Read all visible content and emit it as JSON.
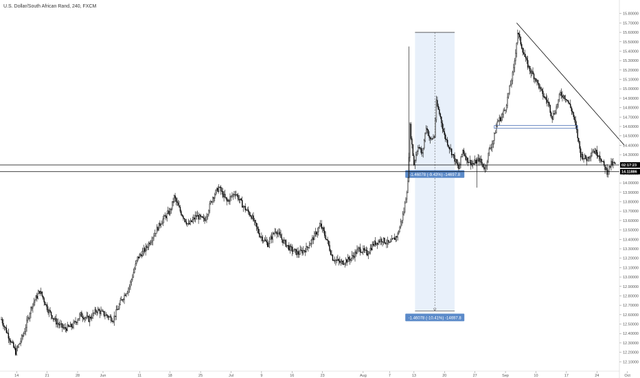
{
  "colors": {
    "background": "#ffffff",
    "candle": "#000000",
    "measure_fill": "#e8f0fa",
    "measure_label": "#5b8ac9",
    "price_tag": "#000000",
    "hline": "#000000",
    "support_line": "#4a6fb5"
  },
  "chart_data": {
    "type": "candlestick",
    "title": "U.S. Dollar/South African Rand, 240, FXCM",
    "ylim": [
      12.0,
      15.9
    ],
    "y_ticks": [
      "12.10000",
      "12.20000",
      "12.30000",
      "12.40000",
      "12.50000",
      "12.60000",
      "12.70000",
      "12.80000",
      "12.90000",
      "13.00000",
      "13.10000",
      "13.20000",
      "13.30000",
      "13.40000",
      "13.50000",
      "13.60000",
      "13.70000",
      "13.80000",
      "13.90000",
      "14.00000",
      "14.10000",
      "14.20000",
      "14.30000",
      "14.40000",
      "14.50000",
      "14.60000",
      "14.70000",
      "14.80000",
      "14.90000",
      "15.00000",
      "15.10000",
      "15.20000",
      "15.30000",
      "15.40000",
      "15.50000",
      "15.60000",
      "15.70000",
      "15.80000"
    ],
    "x_labels": [
      {
        "label": "14",
        "index": 15
      },
      {
        "label": "21",
        "index": 45
      },
      {
        "label": "28",
        "index": 75
      },
      {
        "label": "Jun",
        "index": 100
      },
      {
        "label": "11",
        "index": 136
      },
      {
        "label": "18",
        "index": 166
      },
      {
        "label": "25",
        "index": 196
      },
      {
        "label": "Jul",
        "index": 226
      },
      {
        "label": "9",
        "index": 256
      },
      {
        "label": "16",
        "index": 286
      },
      {
        "label": "23",
        "index": 316
      },
      {
        "label": "Aug",
        "index": 356
      },
      {
        "label": "7",
        "index": 382
      },
      {
        "label": "13",
        "index": 406
      },
      {
        "label": "20",
        "index": 436
      },
      {
        "label": "27",
        "index": 466
      },
      {
        "label": "Sep",
        "index": 496
      },
      {
        "label": "10",
        "index": 526
      },
      {
        "label": "17",
        "index": 556
      },
      {
        "label": "24",
        "index": 586
      },
      {
        "label": "Oct",
        "index": 616
      }
    ],
    "anchors": [
      [
        0,
        12.55
      ],
      [
        8,
        12.35
      ],
      [
        14,
        12.2
      ],
      [
        22,
        12.4
      ],
      [
        30,
        12.7
      ],
      [
        38,
        12.85
      ],
      [
        46,
        12.65
      ],
      [
        54,
        12.52
      ],
      [
        62,
        12.45
      ],
      [
        70,
        12.48
      ],
      [
        78,
        12.6
      ],
      [
        86,
        12.55
      ],
      [
        94,
        12.65
      ],
      [
        102,
        12.6
      ],
      [
        110,
        12.55
      ],
      [
        118,
        12.75
      ],
      [
        126,
        12.9
      ],
      [
        134,
        13.2
      ],
      [
        142,
        13.3
      ],
      [
        150,
        13.45
      ],
      [
        158,
        13.6
      ],
      [
        166,
        13.7
      ],
      [
        170,
        13.85
      ],
      [
        176,
        13.7
      ],
      [
        184,
        13.55
      ],
      [
        192,
        13.65
      ],
      [
        200,
        13.6
      ],
      [
        208,
        13.85
      ],
      [
        214,
        13.95
      ],
      [
        222,
        13.8
      ],
      [
        230,
        13.9
      ],
      [
        238,
        13.75
      ],
      [
        246,
        13.65
      ],
      [
        254,
        13.45
      ],
      [
        262,
        13.35
      ],
      [
        270,
        13.5
      ],
      [
        276,
        13.4
      ],
      [
        284,
        13.3
      ],
      [
        292,
        13.25
      ],
      [
        300,
        13.3
      ],
      [
        306,
        13.4
      ],
      [
        314,
        13.55
      ],
      [
        320,
        13.4
      ],
      [
        326,
        13.2
      ],
      [
        334,
        13.15
      ],
      [
        344,
        13.2
      ],
      [
        352,
        13.3
      ],
      [
        360,
        13.25
      ],
      [
        366,
        13.35
      ],
      [
        374,
        13.4
      ],
      [
        382,
        13.35
      ],
      [
        390,
        13.45
      ],
      [
        396,
        13.7
      ],
      [
        400,
        14.0
      ],
      [
        402,
        14.6
      ],
      [
        406,
        14.2
      ],
      [
        410,
        14.4
      ],
      [
        414,
        14.3
      ],
      [
        418,
        14.6
      ],
      [
        422,
        14.45
      ],
      [
        426,
        14.5
      ],
      [
        428,
        14.85
      ],
      [
        432,
        14.7
      ],
      [
        436,
        14.5
      ],
      [
        440,
        14.4
      ],
      [
        444,
        14.3
      ],
      [
        450,
        14.15
      ],
      [
        454,
        14.35
      ],
      [
        458,
        14.25
      ],
      [
        464,
        14.2
      ],
      [
        470,
        14.25
      ],
      [
        476,
        14.15
      ],
      [
        480,
        14.35
      ],
      [
        484,
        14.45
      ],
      [
        488,
        14.65
      ],
      [
        492,
        14.7
      ],
      [
        496,
        14.8
      ],
      [
        500,
        15.0
      ],
      [
        504,
        15.2
      ],
      [
        508,
        15.6
      ],
      [
        512,
        15.45
      ],
      [
        516,
        15.3
      ],
      [
        520,
        15.2
      ],
      [
        526,
        15.1
      ],
      [
        532,
        14.95
      ],
      [
        538,
        14.85
      ],
      [
        542,
        14.7
      ],
      [
        546,
        14.8
      ],
      [
        550,
        14.95
      ],
      [
        556,
        14.9
      ],
      [
        562,
        14.75
      ],
      [
        566,
        14.55
      ],
      [
        570,
        14.3
      ],
      [
        576,
        14.25
      ],
      [
        582,
        14.35
      ],
      [
        588,
        14.3
      ],
      [
        592,
        14.2
      ],
      [
        596,
        14.12
      ],
      [
        600,
        14.2
      ]
    ],
    "horizontal_lines": [
      {
        "price": 14.191
      },
      {
        "price": 14.12
      }
    ],
    "support_band": {
      "x0": 485,
      "x1": 567,
      "y_top": 14.61,
      "y_bot": 14.58
    },
    "trendline": {
      "x0": 507,
      "y0": 15.7,
      "x1": 613,
      "y1": 14.4
    },
    "measure": {
      "x0": 407,
      "x1": 446,
      "price_top": 15.6,
      "price_bot": 12.64,
      "label_top": "-1.46078 (-9.43%) -14697.8",
      "label_bottom": "-1.46078 (-10.41%) -14697.8"
    },
    "price_tags": [
      {
        "price": 14.191,
        "text": "02:17:23"
      },
      {
        "price": 14.12,
        "text": "14.11886"
      }
    ]
  }
}
